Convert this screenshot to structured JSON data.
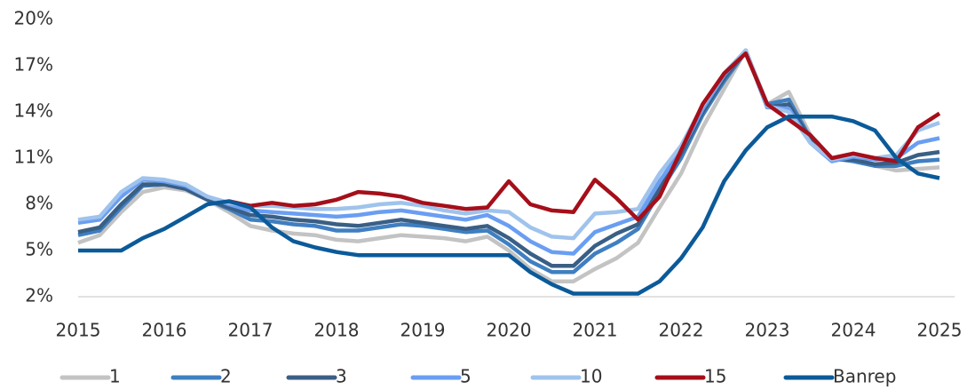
{
  "chart_data": {
    "type": "line",
    "x": [
      2015,
      2015.25,
      2015.5,
      2015.75,
      2016,
      2016.25,
      2016.5,
      2016.75,
      2017,
      2017.25,
      2017.5,
      2017.75,
      2018,
      2018.25,
      2018.5,
      2018.75,
      2019,
      2019.25,
      2019.5,
      2019.75,
      2020,
      2020.25,
      2020.5,
      2020.75,
      2021,
      2021.25,
      2021.5,
      2021.75,
      2022,
      2022.25,
      2022.5,
      2022.75,
      2023,
      2023.25,
      2023.5,
      2023.75,
      2024,
      2024.25,
      2024.5,
      2024.75,
      2025
    ],
    "xlim": [
      2015,
      2025
    ],
    "xticks": [
      2015,
      2016,
      2017,
      2018,
      2019,
      2020,
      2021,
      2022,
      2023,
      2024,
      2025
    ],
    "ylim": [
      2,
      20
    ],
    "yticks": [
      {
        "value": 2,
        "label": "2%"
      },
      {
        "value": 5,
        "label": "5%"
      },
      {
        "value": 8,
        "label": "8%"
      },
      {
        "value": 11,
        "label": "11%"
      },
      {
        "value": 14,
        "label": "14%"
      },
      {
        "value": 17,
        "label": "17%"
      },
      {
        "value": 20,
        "label": "20%"
      }
    ],
    "series": [
      {
        "name": "1",
        "color": "#c3c3c3",
        "values": [
          5.5,
          6.0,
          7.5,
          8.8,
          9.1,
          8.9,
          8.3,
          7.5,
          6.6,
          6.3,
          6.1,
          6.0,
          5.7,
          5.6,
          5.8,
          6.0,
          5.9,
          5.8,
          5.6,
          5.9,
          5.0,
          3.8,
          3.0,
          3.0,
          3.8,
          4.5,
          5.5,
          7.8,
          10.0,
          13.0,
          15.5,
          18.0,
          14.5,
          15.3,
          12.5,
          11.0,
          11.0,
          10.5,
          10.2,
          10.3,
          10.4
        ]
      },
      {
        "name": "2",
        "color": "#3f7fc1",
        "values": [
          6.0,
          6.3,
          7.8,
          9.2,
          9.3,
          9.0,
          8.3,
          7.7,
          7.0,
          6.9,
          6.7,
          6.6,
          6.3,
          6.3,
          6.5,
          6.7,
          6.6,
          6.4,
          6.2,
          6.3,
          5.4,
          4.3,
          3.6,
          3.6,
          4.8,
          5.5,
          6.4,
          8.8,
          11.0,
          13.8,
          16.0,
          17.9,
          14.5,
          14.8,
          12.3,
          11.0,
          10.8,
          10.5,
          10.5,
          10.8,
          10.9
        ]
      },
      {
        "name": "3",
        "color": "#3a5f85",
        "values": [
          6.2,
          6.5,
          8.0,
          9.3,
          9.3,
          9.0,
          8.3,
          7.8,
          7.3,
          7.2,
          7.0,
          6.9,
          6.7,
          6.6,
          6.8,
          7.0,
          6.8,
          6.6,
          6.4,
          6.6,
          5.8,
          4.8,
          4.0,
          4.0,
          5.3,
          6.1,
          6.7,
          9.0,
          11.3,
          14.0,
          16.2,
          18.0,
          14.3,
          14.5,
          12.2,
          10.9,
          10.9,
          10.6,
          10.7,
          11.2,
          11.4
        ]
      },
      {
        "name": "5",
        "color": "#6a9ef2",
        "values": [
          6.8,
          7.0,
          8.5,
          9.6,
          9.5,
          9.2,
          8.5,
          8.0,
          7.6,
          7.5,
          7.4,
          7.3,
          7.2,
          7.3,
          7.5,
          7.6,
          7.4,
          7.2,
          7.0,
          7.3,
          6.6,
          5.6,
          4.9,
          4.8,
          6.2,
          6.7,
          7.2,
          9.5,
          11.5,
          14.2,
          16.4,
          18.0,
          14.3,
          14.2,
          12.0,
          10.8,
          11.1,
          10.9,
          11.0,
          12.0,
          12.3
        ]
      },
      {
        "name": "10",
        "color": "#9fc3ec",
        "values": [
          7.0,
          7.2,
          8.8,
          9.7,
          9.6,
          9.3,
          8.5,
          8.1,
          7.9,
          7.9,
          7.8,
          7.7,
          7.7,
          7.8,
          8.0,
          8.1,
          7.9,
          7.6,
          7.4,
          7.6,
          7.5,
          6.5,
          5.9,
          5.8,
          7.4,
          7.5,
          7.7,
          10.0,
          11.8,
          14.4,
          16.5,
          18.0,
          14.4,
          14.0,
          12.0,
          10.9,
          11.2,
          11.0,
          11.2,
          12.8,
          13.3
        ]
      },
      {
        "name": "15",
        "color": "#a50f1a",
        "values": [
          null,
          null,
          null,
          null,
          null,
          null,
          null,
          8.2,
          7.9,
          8.1,
          7.9,
          8.0,
          8.3,
          8.8,
          8.7,
          8.5,
          8.1,
          7.9,
          7.7,
          7.8,
          9.5,
          8.0,
          7.6,
          7.5,
          9.6,
          8.4,
          7.0,
          8.5,
          11.5,
          14.5,
          16.5,
          17.8,
          14.5,
          13.5,
          12.5,
          11.0,
          11.3,
          11.0,
          10.8,
          13.0,
          13.9
        ]
      },
      {
        "name": "Banrep",
        "color": "#0b5a99",
        "values": [
          5.0,
          5.0,
          5.0,
          5.8,
          6.4,
          7.2,
          8.0,
          8.2,
          7.8,
          6.5,
          5.6,
          5.2,
          4.9,
          4.7,
          4.7,
          4.7,
          4.7,
          4.7,
          4.7,
          4.7,
          4.7,
          3.6,
          2.8,
          2.2,
          2.2,
          2.2,
          2.2,
          3.0,
          4.5,
          6.5,
          9.5,
          11.5,
          13.0,
          13.7,
          13.7,
          13.7,
          13.4,
          12.8,
          11.0,
          10.0,
          9.7
        ]
      }
    ]
  }
}
